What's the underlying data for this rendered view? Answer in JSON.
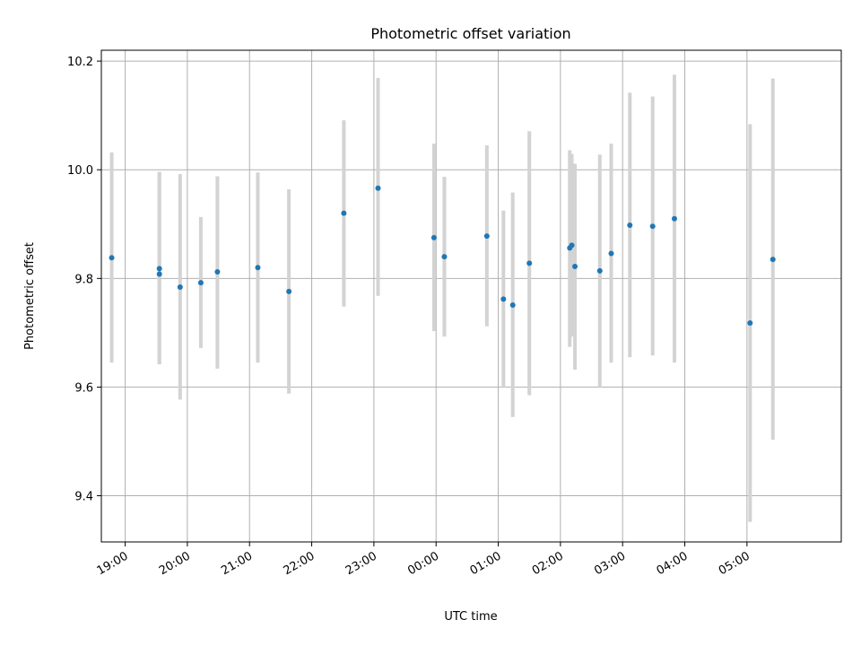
{
  "chart_data": {
    "type": "scatter",
    "title": "Photometric offset variation",
    "xlabel": "UTC time",
    "ylabel": "Photometric offset",
    "x_ticks": [
      "19:00",
      "20:00",
      "21:00",
      "22:00",
      "23:00",
      "00:00",
      "01:00",
      "02:00",
      "03:00",
      "04:00",
      "05:00"
    ],
    "y_ticks": [
      "9.4",
      "9.6",
      "9.8",
      "10.0",
      "10.2"
    ],
    "xlim": [
      "18:37",
      "06:31"
    ],
    "ylim": [
      9.315,
      10.22
    ],
    "grid": true,
    "points": [
      {
        "time": "18:47",
        "y": 9.838,
        "low": 9.645,
        "high": 10.032
      },
      {
        "time": "19:33",
        "y": 9.818,
        "low": 9.642,
        "high": 9.996
      },
      {
        "time": "19:33",
        "y": 9.808,
        "low": 9.642,
        "high": 9.996
      },
      {
        "time": "19:53",
        "y": 9.784,
        "low": 9.577,
        "high": 9.992
      },
      {
        "time": "20:13",
        "y": 9.792,
        "low": 9.672,
        "high": 9.913
      },
      {
        "time": "20:29",
        "y": 9.812,
        "low": 9.634,
        "high": 9.988
      },
      {
        "time": "21:08",
        "y": 9.82,
        "low": 9.645,
        "high": 9.995
      },
      {
        "time": "21:38",
        "y": 9.776,
        "low": 9.588,
        "high": 9.964
      },
      {
        "time": "22:31",
        "y": 9.92,
        "low": 9.748,
        "high": 10.091
      },
      {
        "time": "23:04",
        "y": 9.966,
        "low": 9.768,
        "high": 10.169
      },
      {
        "time": "23:58",
        "y": 9.875,
        "low": 9.703,
        "high": 10.048
      },
      {
        "time": "00:08",
        "y": 9.84,
        "low": 9.693,
        "high": 9.987
      },
      {
        "time": "00:49",
        "y": 9.878,
        "low": 9.712,
        "high": 10.045
      },
      {
        "time": "01:05",
        "y": 9.762,
        "low": 9.6,
        "high": 9.925
      },
      {
        "time": "01:14",
        "y": 9.751,
        "low": 9.545,
        "high": 9.958
      },
      {
        "time": "01:30",
        "y": 9.828,
        "low": 9.585,
        "high": 10.071
      },
      {
        "time": "02:09",
        "y": 9.856,
        "low": 9.674,
        "high": 10.036
      },
      {
        "time": "02:11",
        "y": 9.861,
        "low": 9.693,
        "high": 10.029
      },
      {
        "time": "02:14",
        "y": 9.822,
        "low": 9.632,
        "high": 10.011
      },
      {
        "time": "02:38",
        "y": 9.814,
        "low": 9.6,
        "high": 10.028
      },
      {
        "time": "02:49",
        "y": 9.846,
        "low": 9.645,
        "high": 10.048
      },
      {
        "time": "03:07",
        "y": 9.898,
        "low": 9.655,
        "high": 10.142
      },
      {
        "time": "03:29",
        "y": 9.896,
        "low": 9.658,
        "high": 10.135
      },
      {
        "time": "03:50",
        "y": 9.91,
        "low": 9.645,
        "high": 10.175
      },
      {
        "time": "05:03",
        "y": 9.718,
        "low": 9.352,
        "high": 10.084
      },
      {
        "time": "05:25",
        "y": 9.835,
        "low": 9.503,
        "high": 10.168
      }
    ],
    "colors": {
      "point": "#1f77b4",
      "errorbar": "#d3d3d3",
      "grid": "#b0b0b0"
    }
  }
}
